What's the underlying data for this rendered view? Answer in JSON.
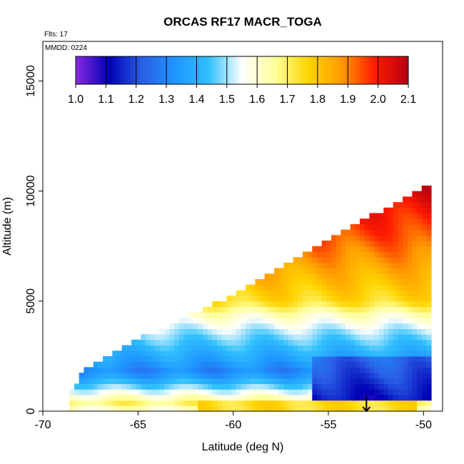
{
  "chart_data": {
    "type": "heatmap",
    "title": "ORCAS RF17 MACR_TOGA",
    "subtitle": "Flts: 17",
    "date_label": "MMDD: 0224",
    "xlabel": "Latitude (deg N)",
    "ylabel": "Altitude (m)",
    "xlim": [
      -70,
      -49
    ],
    "ylim": [
      0,
      16800
    ],
    "x_ticks": [
      "-70",
      "-65",
      "-60",
      "-55",
      "-50"
    ],
    "y_ticks": [
      "0",
      "5000",
      "10000",
      "15000"
    ],
    "colorbar": {
      "range": [
        1.0,
        2.1
      ],
      "tick_labels": [
        "1.0",
        "1.1",
        "1.2",
        "1.3",
        "1.4",
        "1.5",
        "1.6",
        "1.7",
        "1.8",
        "1.9",
        "2.0",
        "2.1"
      ],
      "colors": [
        "#8a2be2",
        "#0000b4",
        "#2a5fe6",
        "#1e96ff",
        "#30c0ff",
        "#ffffff",
        "#ffff9a",
        "#ffd400",
        "#ff9a00",
        "#ff1a00",
        "#b40012"
      ]
    },
    "field": {
      "lat_range": [
        -68.6,
        -49.8
      ],
      "domain_top_altitude": [
        [
          -68.6,
          900
        ],
        [
          -68.0,
          1700
        ],
        [
          -65.0,
          3200
        ],
        [
          -60.0,
          5200
        ],
        [
          -55.0,
          7700
        ],
        [
          -50.5,
          9900
        ],
        [
          -50.0,
          10200
        ]
      ],
      "value_vs_altitude": [
        [
          0,
          1.55
        ],
        [
          300,
          1.7
        ],
        [
          700,
          1.6
        ],
        [
          1200,
          1.45
        ],
        [
          1800,
          1.3
        ],
        [
          2700,
          1.4
        ],
        [
          3600,
          1.5
        ],
        [
          4300,
          1.6
        ],
        [
          5000,
          1.75
        ],
        [
          6500,
          1.85
        ],
        [
          8000,
          1.95
        ],
        [
          10200,
          2.05
        ]
      ],
      "surface_band_value": 1.75,
      "low_value_region_lat": [
        -56.0,
        -49.8
      ]
    },
    "flight_arrow_lat": -53.0
  }
}
